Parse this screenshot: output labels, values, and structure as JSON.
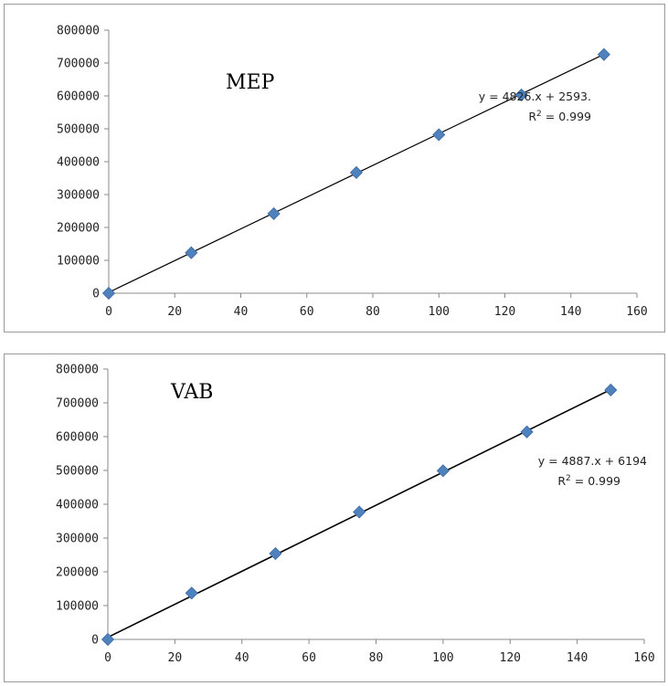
{
  "chart_data": [
    {
      "type": "scatter",
      "title": "MEP",
      "x": [
        0,
        25,
        50,
        75,
        100,
        125,
        150
      ],
      "series": [
        {
          "values": [
            0,
            123000,
            242000,
            367000,
            482000,
            603000,
            726000
          ],
          "color": "#4f81bd",
          "marker": "diamond"
        }
      ],
      "trendline": {
        "slope": 4826,
        "intercept": 2593,
        "color": "#000000"
      },
      "equation": "y = 4826.x + 2593.",
      "r2_label": "R",
      "r2_sup": "2",
      "r2_value": " = 0.999",
      "xlim": [
        0,
        160
      ],
      "ylim": [
        0,
        800000
      ],
      "xticks": [
        "0",
        "20",
        "40",
        "60",
        "80",
        "100",
        "120",
        "140",
        "160"
      ],
      "yticks": [
        "0",
        "100000",
        "200000",
        "300000",
        "400000",
        "500000",
        "600000",
        "700000",
        "800000"
      ],
      "grid": false,
      "legend": "none"
    },
    {
      "type": "scatter",
      "title": "VAB",
      "x": [
        0,
        25,
        50,
        75,
        100,
        125,
        150
      ],
      "series": [
        {
          "values": [
            0,
            137000,
            254000,
            377000,
            499000,
            614000,
            738000
          ],
          "color": "#4f81bd",
          "marker": "diamond"
        }
      ],
      "trendline": {
        "slope": 4887,
        "intercept": 6194,
        "color": "#000000"
      },
      "equation": "y = 4887.x + 6194",
      "r2_label": "R",
      "r2_sup": "2",
      "r2_value": " = 0.999",
      "xlim": [
        0,
        160
      ],
      "ylim": [
        0,
        800000
      ],
      "xticks": [
        "0",
        "20",
        "40",
        "60",
        "80",
        "100",
        "120",
        "140",
        "160"
      ],
      "yticks": [
        "0",
        "100000",
        "200000",
        "300000",
        "400000",
        "500000",
        "600000",
        "700000",
        "800000"
      ],
      "grid": false,
      "legend": "none"
    }
  ]
}
